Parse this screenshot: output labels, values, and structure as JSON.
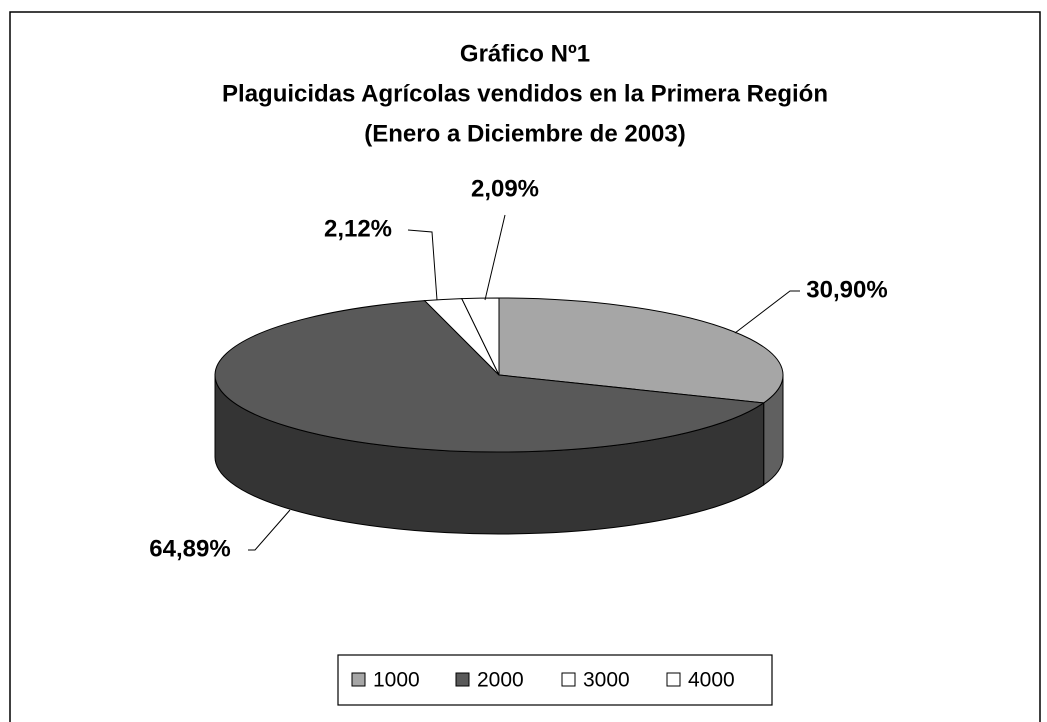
{
  "chart_data": {
    "type": "pie",
    "title": [
      "Gráfico Nº1",
      "Plaguicidas Agrícolas vendidos en la Primera Región",
      "(Enero a Diciembre de 2003)"
    ],
    "categories": [
      "1000",
      "2000",
      "3000",
      "4000"
    ],
    "values": [
      30.9,
      64.89,
      2.12,
      2.09
    ],
    "value_labels": [
      "30,90%",
      "64,89%",
      "2,12%",
      "2,09%"
    ],
    "colors": [
      "#a6a6a6",
      "#595959",
      "#ffffff",
      "#ffffff"
    ],
    "legend": "bottom"
  }
}
